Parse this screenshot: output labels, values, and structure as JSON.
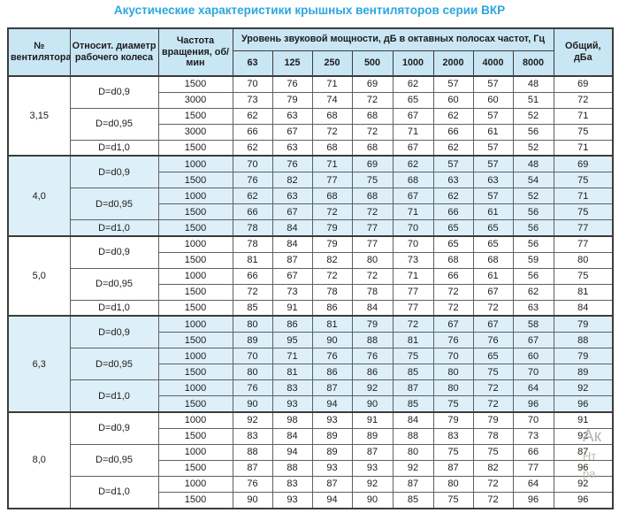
{
  "title": "Акустические характеристики крышных вентиляторов серии ВКР",
  "colors": {
    "title": "#2aa7de",
    "header_bg": "#c9e6f4",
    "band_bg": "#ddeff9",
    "border_dark": "#3c3c3c",
    "border_mid": "#5f6062",
    "text": "#1c1c1c"
  },
  "table": {
    "col_fan": "№ вентилятора",
    "col_diameter": "Относит. диаметр рабочего колеса",
    "col_rpm": "Частота вращения, об/мин",
    "group_header": "Уровень звуковой мощности, дБ в октавных полосах частот, Гц",
    "frequencies": [
      "63",
      "125",
      "250",
      "500",
      "1000",
      "2000",
      "4000",
      "8000"
    ],
    "col_total": "Общий, дБа",
    "sections": [
      {
        "fan": "3,15",
        "shaded": false,
        "groups": [
          {
            "diameter": "D=d0,9",
            "rows": [
              {
                "rpm": "1500",
                "levels": [
                  70,
                  76,
                  71,
                  69,
                  62,
                  57,
                  57,
                  48
                ],
                "total": 69
              },
              {
                "rpm": "3000",
                "levels": [
                  73,
                  79,
                  74,
                  72,
                  65,
                  60,
                  60,
                  51
                ],
                "total": 72
              }
            ]
          },
          {
            "diameter": "D=d0,95",
            "rows": [
              {
                "rpm": "1500",
                "levels": [
                  62,
                  63,
                  68,
                  68,
                  67,
                  62,
                  57,
                  52
                ],
                "total": 71
              },
              {
                "rpm": "3000",
                "levels": [
                  66,
                  67,
                  72,
                  72,
                  71,
                  66,
                  61,
                  56
                ],
                "total": 75
              }
            ]
          },
          {
            "diameter": "D=d1,0",
            "rows": [
              {
                "rpm": "1500",
                "levels": [
                  62,
                  63,
                  68,
                  68,
                  67,
                  62,
                  57,
                  52
                ],
                "total": 71
              }
            ]
          }
        ]
      },
      {
        "fan": "4,0",
        "shaded": true,
        "groups": [
          {
            "diameter": "D=d0,9",
            "rows": [
              {
                "rpm": "1000",
                "levels": [
                  70,
                  76,
                  71,
                  69,
                  62,
                  57,
                  57,
                  48
                ],
                "total": 69
              },
              {
                "rpm": "1500",
                "levels": [
                  76,
                  82,
                  77,
                  75,
                  68,
                  63,
                  63,
                  54
                ],
                "total": 75
              }
            ]
          },
          {
            "diameter": "D=d0,95",
            "rows": [
              {
                "rpm": "1000",
                "levels": [
                  62,
                  63,
                  68,
                  68,
                  67,
                  62,
                  57,
                  52
                ],
                "total": 71
              },
              {
                "rpm": "1500",
                "levels": [
                  66,
                  67,
                  72,
                  72,
                  71,
                  66,
                  61,
                  56
                ],
                "total": 75
              }
            ]
          },
          {
            "diameter": "D=d1,0",
            "rows": [
              {
                "rpm": "1500",
                "levels": [
                  78,
                  84,
                  79,
                  77,
                  70,
                  65,
                  65,
                  56
                ],
                "total": 77
              }
            ]
          }
        ]
      },
      {
        "fan": "5,0",
        "shaded": false,
        "groups": [
          {
            "diameter": "D=d0,9",
            "rows": [
              {
                "rpm": "1000",
                "levels": [
                  78,
                  84,
                  79,
                  77,
                  70,
                  65,
                  65,
                  56
                ],
                "total": 77
              },
              {
                "rpm": "1500",
                "levels": [
                  81,
                  87,
                  82,
                  80,
                  73,
                  68,
                  68,
                  59
                ],
                "total": 80
              }
            ]
          },
          {
            "diameter": "D=d0,95",
            "rows": [
              {
                "rpm": "1000",
                "levels": [
                  66,
                  67,
                  72,
                  72,
                  71,
                  66,
                  61,
                  56
                ],
                "total": 75
              },
              {
                "rpm": "1500",
                "levels": [
                  72,
                  73,
                  78,
                  78,
                  77,
                  72,
                  67,
                  62
                ],
                "total": 81
              }
            ]
          },
          {
            "diameter": "D=d1,0",
            "rows": [
              {
                "rpm": "1500",
                "levels": [
                  85,
                  91,
                  86,
                  84,
                  77,
                  72,
                  72,
                  63
                ],
                "total": 84
              }
            ]
          }
        ]
      },
      {
        "fan": "6,3",
        "shaded": true,
        "groups": [
          {
            "diameter": "D=d0,9",
            "rows": [
              {
                "rpm": "1000",
                "levels": [
                  80,
                  86,
                  81,
                  79,
                  72,
                  67,
                  67,
                  58
                ],
                "total": 79
              },
              {
                "rpm": "1500",
                "levels": [
                  89,
                  95,
                  90,
                  88,
                  81,
                  76,
                  76,
                  67
                ],
                "total": 88
              }
            ]
          },
          {
            "diameter": "D=d0,95",
            "rows": [
              {
                "rpm": "1000",
                "levels": [
                  70,
                  71,
                  76,
                  76,
                  75,
                  70,
                  65,
                  60
                ],
                "total": 79
              },
              {
                "rpm": "1500",
                "levels": [
                  80,
                  81,
                  86,
                  86,
                  85,
                  80,
                  75,
                  70
                ],
                "total": 89
              }
            ]
          },
          {
            "diameter": "D=d1,0",
            "rows": [
              {
                "rpm": "1000",
                "levels": [
                  76,
                  83,
                  87,
                  92,
                  87,
                  80,
                  72,
                  64
                ],
                "total": 92
              },
              {
                "rpm": "1500",
                "levels": [
                  90,
                  93,
                  94,
                  90,
                  85,
                  75,
                  72,
                  96
                ],
                "total": 96
              }
            ]
          }
        ]
      },
      {
        "fan": "8,0",
        "shaded": false,
        "groups": [
          {
            "diameter": "D=d0,9",
            "rows": [
              {
                "rpm": "1000",
                "levels": [
                  92,
                  98,
                  93,
                  91,
                  84,
                  79,
                  79,
                  70
                ],
                "total": 91
              },
              {
                "rpm": "1500",
                "levels": [
                  83,
                  84,
                  89,
                  89,
                  88,
                  83,
                  78,
                  73
                ],
                "total": 92
              }
            ]
          },
          {
            "diameter": "D=d0,95",
            "rows": [
              {
                "rpm": "1000",
                "levels": [
                  88,
                  94,
                  89,
                  87,
                  80,
                  75,
                  75,
                  66
                ],
                "total": 87
              },
              {
                "rpm": "1500",
                "levels": [
                  87,
                  88,
                  93,
                  93,
                  92,
                  87,
                  82,
                  77
                ],
                "total": 96
              }
            ]
          },
          {
            "diameter": "D=d1,0",
            "rows": [
              {
                "rpm": "1000",
                "levels": [
                  76,
                  83,
                  87,
                  92,
                  87,
                  80,
                  72,
                  64
                ],
                "total": 92
              },
              {
                "rpm": "1500",
                "levels": [
                  90,
                  93,
                  94,
                  90,
                  85,
                  75,
                  72,
                  96
                ],
                "total": 96
              }
            ]
          }
        ]
      }
    ]
  },
  "watermark": {
    "fragments": [
      "Ак",
      "Нт",
      "ра"
    ]
  }
}
